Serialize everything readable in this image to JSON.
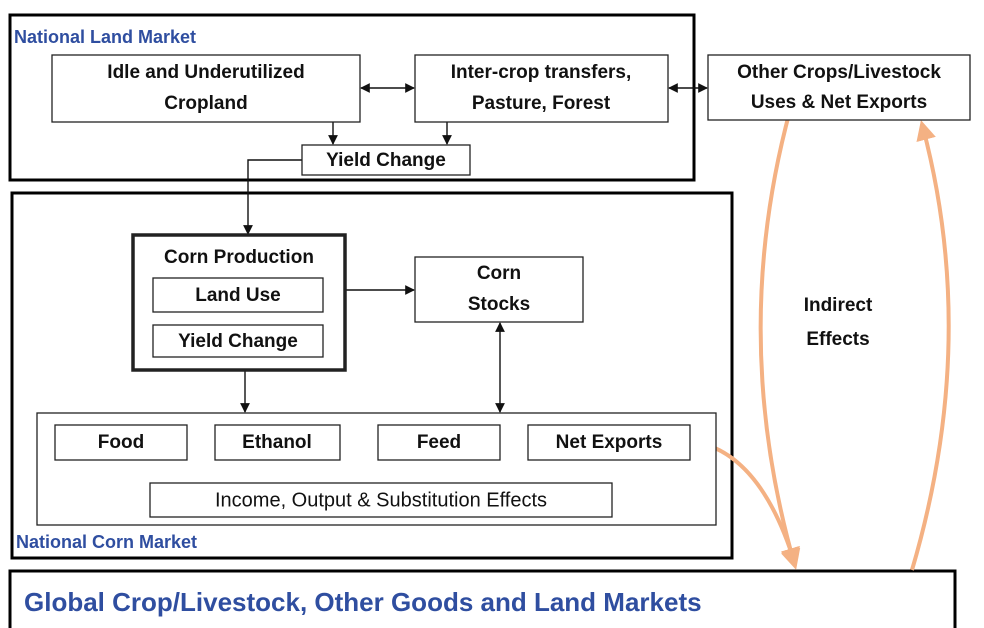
{
  "regions": {
    "land_market": "National Land Market",
    "corn_market": "National Corn Market",
    "global": "Global Crop/Livestock, Other Goods and Land Markets"
  },
  "nodes": {
    "idle_cropland": [
      "Idle and Underutilized",
      "Cropland"
    ],
    "inter_crop": [
      "Inter-crop transfers,",
      "Pasture, Forest"
    ],
    "other_crops": [
      "Other Crops/Livestock",
      "Uses & Net Exports"
    ],
    "yield_change_land": "Yield Change",
    "corn_production": "Corn Production",
    "land_use": "Land Use",
    "yield_change_corn": "Yield Change",
    "corn_stocks": [
      "Corn",
      "Stocks"
    ],
    "food": "Food",
    "ethanol": "Ethanol",
    "feed": "Feed",
    "net_exports": "Net Exports",
    "income_effects": "Income, Output & Substitution Effects"
  },
  "annotation": [
    "Indirect",
    "Effects"
  ]
}
